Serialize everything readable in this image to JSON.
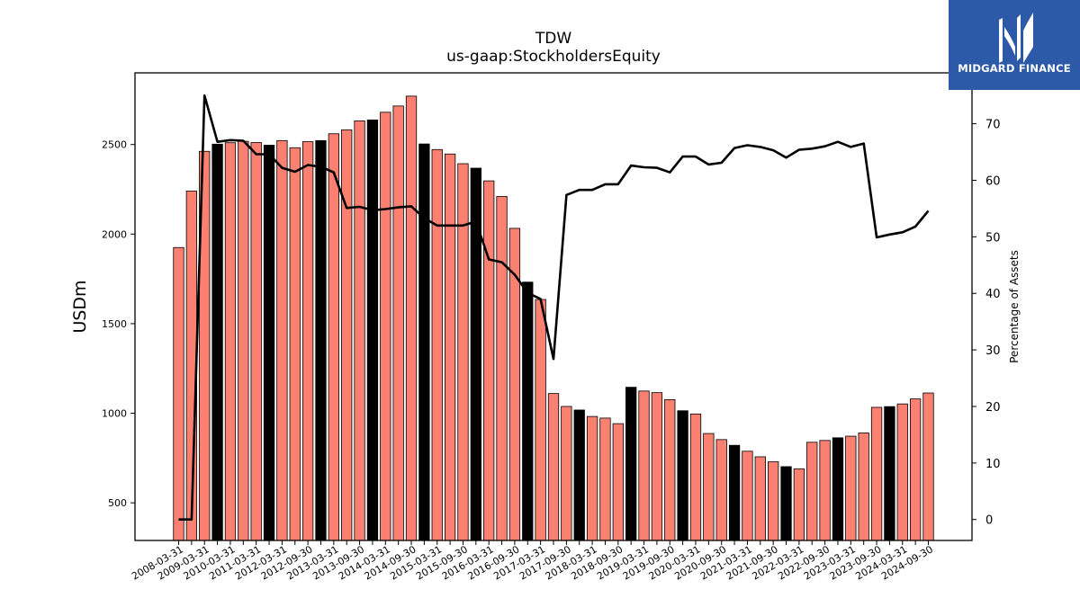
{
  "logo": {
    "name": "MIDGARD FINANCE",
    "icon": "midgard-m-logo-icon"
  },
  "chart_data": {
    "type": "bar",
    "title": "TDW",
    "subtitle": "us-gaap:StockholdersEquity",
    "ylabel": "USDm",
    "y2label": "Percentage of Assets",
    "ylim": [
      290,
      2900
    ],
    "y2lim": [
      -3.7,
      79
    ],
    "yticks": [
      500,
      1000,
      1500,
      2000,
      2500
    ],
    "y2ticks": [
      0,
      10,
      20,
      30,
      40,
      50,
      60,
      70
    ],
    "x_tick_labels": [
      "2008-03-31",
      "2009-03-31",
      "2010-03-31",
      "2011-03-31",
      "2012-03-31",
      "2012-09-30",
      "2013-03-31",
      "2013-09-30",
      "2014-03-31",
      "2014-09-30",
      "2015-03-31",
      "2015-09-30",
      "2016-03-31",
      "2016-09-30",
      "2017-03-31",
      "2017-09-30",
      "2018-03-31",
      "2018-09-30",
      "2019-03-31",
      "2019-09-30",
      "2020-03-31",
      "2020-09-30",
      "2021-03-31",
      "2021-09-30",
      "2022-03-31",
      "2022-09-30",
      "2023-03-31",
      "2023-09-30",
      "2024-03-31",
      "2024-09-30"
    ],
    "series": [
      {
        "kind": "bar",
        "values": [
          1925,
          2240,
          2462,
          2502,
          2510,
          2518,
          2511,
          2496,
          2522,
          2482,
          2516,
          2522,
          2560,
          2582,
          2632,
          2637,
          2680,
          2715,
          2770,
          2503,
          2472,
          2447,
          2393,
          2368,
          2297,
          2210,
          2032,
          1732,
          1635,
          1110,
          1038,
          1018,
          982,
          973,
          942,
          1145,
          1124,
          1115,
          1076,
          1014,
          996,
          887,
          853,
          821,
          788,
          757,
          729,
          702,
          690,
          838,
          848,
          863,
          872,
          890,
          1033,
          1037,
          1052,
          1080,
          1113
        ],
        "colors": [
          "salmon",
          "salmon",
          "salmon",
          "black",
          "salmon",
          "salmon",
          "salmon",
          "black",
          "salmon",
          "salmon",
          "salmon",
          "black",
          "salmon",
          "salmon",
          "salmon",
          "black",
          "salmon",
          "salmon",
          "salmon",
          "black",
          "salmon",
          "salmon",
          "salmon",
          "black",
          "salmon",
          "salmon",
          "salmon",
          "black",
          "salmon",
          "salmon",
          "salmon",
          "black",
          "salmon",
          "salmon",
          "salmon",
          "black",
          "salmon",
          "salmon",
          "salmon",
          "black",
          "salmon",
          "salmon",
          "salmon",
          "black",
          "salmon",
          "salmon",
          "salmon",
          "black",
          "salmon",
          "salmon",
          "salmon",
          "black",
          "salmon",
          "salmon",
          "salmon",
          "black",
          "salmon",
          "salmon",
          "salmon"
        ]
      },
      {
        "kind": "line",
        "axis": "y2",
        "values": [
          0,
          0,
          75,
          66.8,
          67.1,
          67.0,
          64.6,
          64.6,
          62.2,
          61.5,
          62.7,
          62.4,
          61.4,
          55.1,
          55.3,
          54.7,
          54.9,
          55.2,
          55.4,
          53.3,
          52.0,
          52.0,
          52.0,
          52.7,
          46.0,
          45.5,
          43.3,
          40.1,
          39.0,
          28.4,
          57.4,
          58.3,
          58.3,
          59.3,
          59.3,
          62.6,
          62.3,
          62.2,
          61.4,
          64.2,
          64.2,
          62.8,
          63.1,
          65.7,
          66.2,
          65.9,
          65.3,
          64.0,
          65.4,
          65.6,
          66.0,
          66.8,
          65.9,
          66.5,
          49.9,
          50.4,
          50.8,
          51.8,
          54.6
        ]
      }
    ],
    "colors": {
      "bar_primary": "#fa8072",
      "bar_alt": "#000000",
      "line": "#000000",
      "axis": "#000000"
    },
    "grid": false,
    "legend": "none"
  }
}
